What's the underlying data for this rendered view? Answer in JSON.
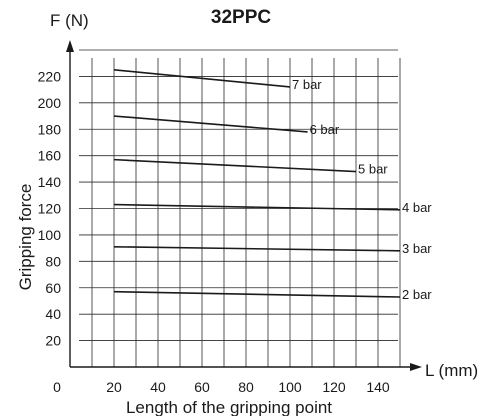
{
  "chart_data": {
    "type": "line",
    "title": "32PPC",
    "y_axis_symbol": "F (N)",
    "x_axis_symbol": "L (mm)",
    "ylabel": "Gripping force",
    "xlabel": "Length of the gripping point",
    "xlim": [
      0,
      150
    ],
    "ylim": [
      0,
      240
    ],
    "x_ticks": [
      0,
      20,
      40,
      60,
      80,
      100,
      120,
      140
    ],
    "y_ticks": [
      20,
      40,
      60,
      80,
      100,
      120,
      140,
      160,
      180,
      200,
      220
    ],
    "grid": true,
    "series": [
      {
        "name": "7 bar",
        "x": [
          20,
          100
        ],
        "y": [
          225,
          212
        ]
      },
      {
        "name": "6 bar",
        "x": [
          20,
          108
        ],
        "y": [
          190,
          178
        ]
      },
      {
        "name": "5 bar",
        "x": [
          20,
          130
        ],
        "y": [
          157,
          148
        ]
      },
      {
        "name": "4 bar",
        "x": [
          20,
          150
        ],
        "y": [
          123,
          119
        ]
      },
      {
        "name": "3 bar",
        "x": [
          20,
          150
        ],
        "y": [
          91,
          88
        ]
      },
      {
        "name": "2 bar",
        "x": [
          20,
          150
        ],
        "y": [
          57,
          53
        ]
      }
    ],
    "colors": {
      "line": "#1a1a1a",
      "grid": "#2a2a2a",
      "background": "#ffffff"
    }
  }
}
